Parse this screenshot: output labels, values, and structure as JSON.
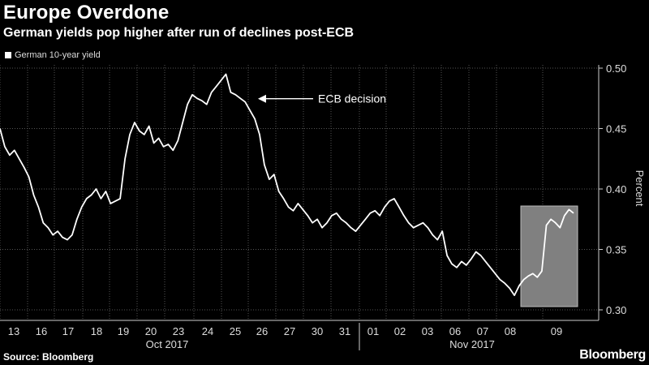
{
  "chart_data": {
    "type": "line",
    "title": "Europe Overdone",
    "subtitle": "German yields pop higher after run of declines post-ECB",
    "ylabel": "Percent",
    "ylim": [
      0.3,
      0.5
    ],
    "y_ticks": [
      "0.30",
      "0.35",
      "0.40",
      "0.45",
      "0.50"
    ],
    "legend": "top-left",
    "grid": true,
    "x_day_labels": [
      "13",
      "16",
      "17",
      "18",
      "19",
      "20",
      "23",
      "24",
      "25",
      "26",
      "27",
      "30",
      "31",
      "01",
      "02",
      "03",
      "06",
      "07",
      "08",
      "09"
    ],
    "x_month_labels": [
      "Oct 2017",
      "Nov 2017"
    ],
    "series": [
      {
        "name": "German 10-year yield",
        "values": [
          0.45,
          0.435,
          0.428,
          0.432,
          0.425,
          0.418,
          0.41,
          0.395,
          0.385,
          0.372,
          0.368,
          0.362,
          0.365,
          0.36,
          0.358,
          0.362,
          0.375,
          0.385,
          0.392,
          0.395,
          0.4,
          0.392,
          0.398,
          0.388,
          0.39,
          0.392,
          0.425,
          0.445,
          0.455,
          0.448,
          0.445,
          0.452,
          0.438,
          0.442,
          0.435,
          0.437,
          0.432,
          0.44,
          0.455,
          0.47,
          0.478,
          0.475,
          0.473,
          0.47,
          0.48,
          0.485,
          0.49,
          0.495,
          0.48,
          0.478,
          0.475,
          0.472,
          0.465,
          0.458,
          0.445,
          0.42,
          0.408,
          0.412,
          0.398,
          0.392,
          0.385,
          0.382,
          0.388,
          0.383,
          0.378,
          0.372,
          0.375,
          0.368,
          0.372,
          0.378,
          0.38,
          0.375,
          0.372,
          0.368,
          0.365,
          0.37,
          0.375,
          0.38,
          0.382,
          0.378,
          0.385,
          0.39,
          0.392,
          0.385,
          0.378,
          0.372,
          0.368,
          0.37,
          0.372,
          0.368,
          0.362,
          0.358,
          0.365,
          0.345,
          0.338,
          0.335,
          0.34,
          0.337,
          0.342,
          0.348,
          0.345,
          0.34,
          0.335,
          0.33,
          0.325,
          0.322,
          0.318,
          0.312,
          0.32,
          0.325,
          0.328,
          0.33,
          0.327,
          0.332,
          0.37,
          0.375,
          0.372,
          0.368,
          0.378,
          0.383,
          0.38
        ]
      }
    ],
    "annotations": [
      {
        "text": "ECB decision",
        "x_label": "26",
        "value": 0.472
      }
    ],
    "highlight": {
      "from_label": "08",
      "to_label": "09"
    }
  },
  "footer": {
    "source": "Source: Bloomberg",
    "brand": "Bloomberg"
  },
  "colors": {
    "background": "#000000",
    "line": "#ffffff",
    "highlight": "#808080",
    "grid": "#555555"
  }
}
